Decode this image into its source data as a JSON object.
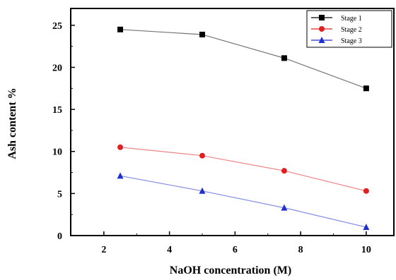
{
  "chart_data": {
    "type": "line",
    "xlabel": "NaOH concentration (M)",
    "ylabel": "Ash content %",
    "xlim": [
      1,
      11
    ],
    "ylim": [
      0,
      27
    ],
    "xticks": [
      2,
      4,
      6,
      8,
      10
    ],
    "yticks": [
      0,
      5,
      10,
      15,
      20,
      25
    ],
    "grid": false,
    "legend_position": "top-right",
    "x": [
      2.5,
      5,
      7.5,
      10
    ],
    "series": [
      {
        "name": "Stage 1",
        "values": [
          24.5,
          23.9,
          21.1,
          17.5
        ],
        "color": "#000000",
        "marker": "square"
      },
      {
        "name": "Stage 2",
        "values": [
          10.5,
          9.5,
          7.7,
          5.3
        ],
        "color": "#e02020",
        "marker": "circle"
      },
      {
        "name": "Stage 3",
        "values": [
          7.1,
          5.3,
          3.3,
          1.0
        ],
        "color": "#2030d0",
        "marker": "triangle"
      }
    ]
  }
}
